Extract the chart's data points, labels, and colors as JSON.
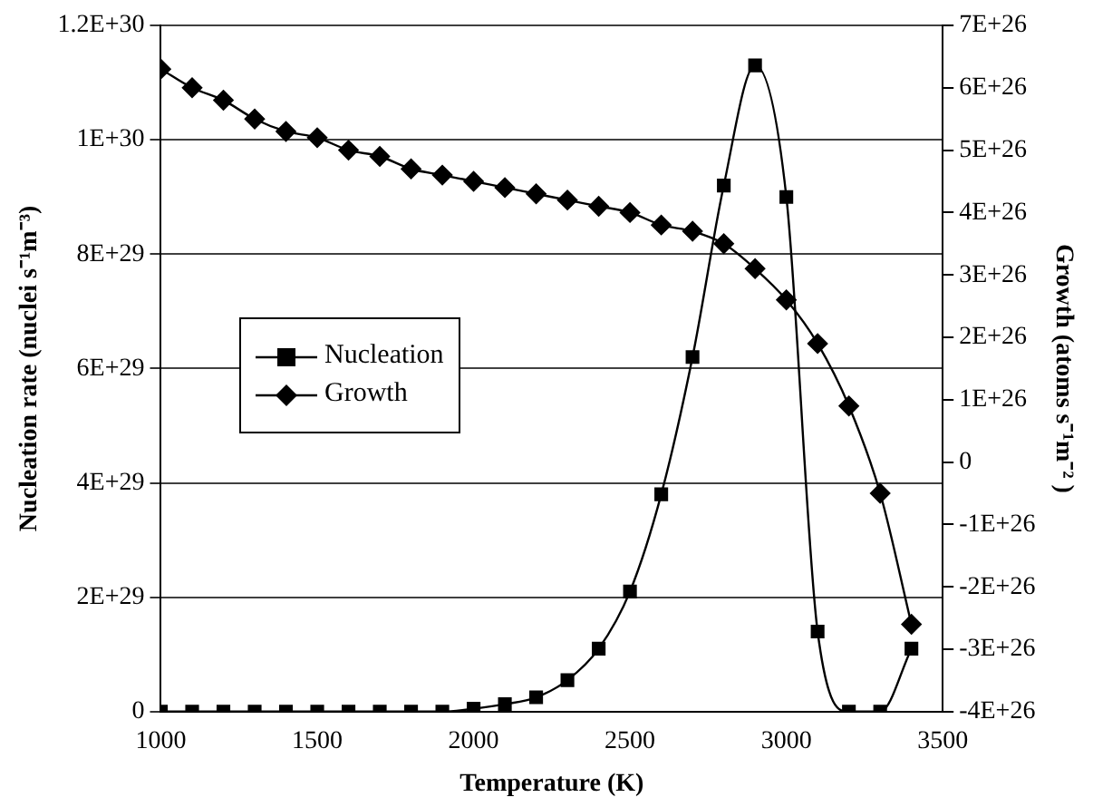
{
  "chart_data": {
    "type": "line",
    "xlabel": "Temperature (K)",
    "ylabel": "Nucleation rate (nuclei s⁻¹m⁻³)",
    "y2label": "Growth (atoms s⁻¹m⁻² )",
    "x": [
      1000,
      1100,
      1200,
      1300,
      1400,
      1500,
      1600,
      1700,
      1800,
      1900,
      2000,
      2100,
      2200,
      2300,
      2400,
      2500,
      2600,
      2700,
      2800,
      2900,
      3000,
      3100,
      3200,
      3300,
      3400
    ],
    "series": [
      {
        "name": "Nucleation",
        "color": "#000000",
        "marker": "square",
        "values": [
          0,
          0,
          0,
          0,
          0,
          0,
          0,
          0,
          0,
          0,
          5e+27,
          1.3e+28,
          2.5e+28,
          5.5e+28,
          1.1e+29,
          2.1e+29,
          3.8e+29,
          6.2e+29,
          9.2e+29,
          1.13e+30,
          9e+29,
          1.4e+29,
          0,
          0,
          1.1e+29
        ]
      },
      {
        "name": "Growth",
        "color": "#000000",
        "marker": "diamond",
        "axis": "y2",
        "values": [
          6.3e+26,
          6e+26,
          5.8e+26,
          5.5e+26,
          5.3e+26,
          5.2e+26,
          5e+26,
          4.9e+26,
          4.7e+26,
          4.6e+26,
          4.5e+26,
          4.4e+26,
          4.3e+26,
          4.2e+26,
          4.1e+26,
          4e+26,
          3.8e+26,
          3.7e+26,
          3.5e+26,
          3.1e+26,
          2.6e+26,
          1.9e+26,
          9e+25,
          -5e+25,
          -2.6e+26
        ]
      }
    ],
    "xlim": [
      1000,
      3500
    ],
    "xticks": [
      1000,
      1500,
      2000,
      2500,
      3000,
      3500
    ],
    "ylim": [
      0,
      1.2e+30
    ],
    "yticks": [
      0,
      {
        "value": 2e+29,
        "label": "2E+29"
      },
      {
        "value": 4e+29,
        "label": "4E+29"
      },
      {
        "value": 6e+29,
        "label": "6E+29"
      },
      {
        "value": 8e+29,
        "label": "8E+29"
      },
      {
        "value": 1e+30,
        "label": "1E+30"
      },
      {
        "value": 1.2e+30,
        "label": "1.2E+30"
      }
    ],
    "y2lim": [
      -4e+26,
      7e+26
    ],
    "y2ticks": [
      {
        "value": -4e+26,
        "label": "-4E+26"
      },
      {
        "value": -3e+26,
        "label": "-3E+26"
      },
      {
        "value": -2e+26,
        "label": "-2E+26"
      },
      {
        "value": -1e+26,
        "label": "-1E+26"
      },
      0,
      {
        "value": 1e+26,
        "label": "1E+26"
      },
      {
        "value": 2e+26,
        "label": "2E+26"
      },
      {
        "value": 3e+26,
        "label": "3E+26"
      },
      {
        "value": 4e+26,
        "label": "4E+26"
      },
      {
        "value": 5e+26,
        "label": "5E+26"
      },
      {
        "value": 6e+26,
        "label": "6E+26"
      },
      {
        "value": 7e+26,
        "label": "7E+26"
      }
    ],
    "grid": "y",
    "legend": "left",
    "line_style": "solid"
  }
}
